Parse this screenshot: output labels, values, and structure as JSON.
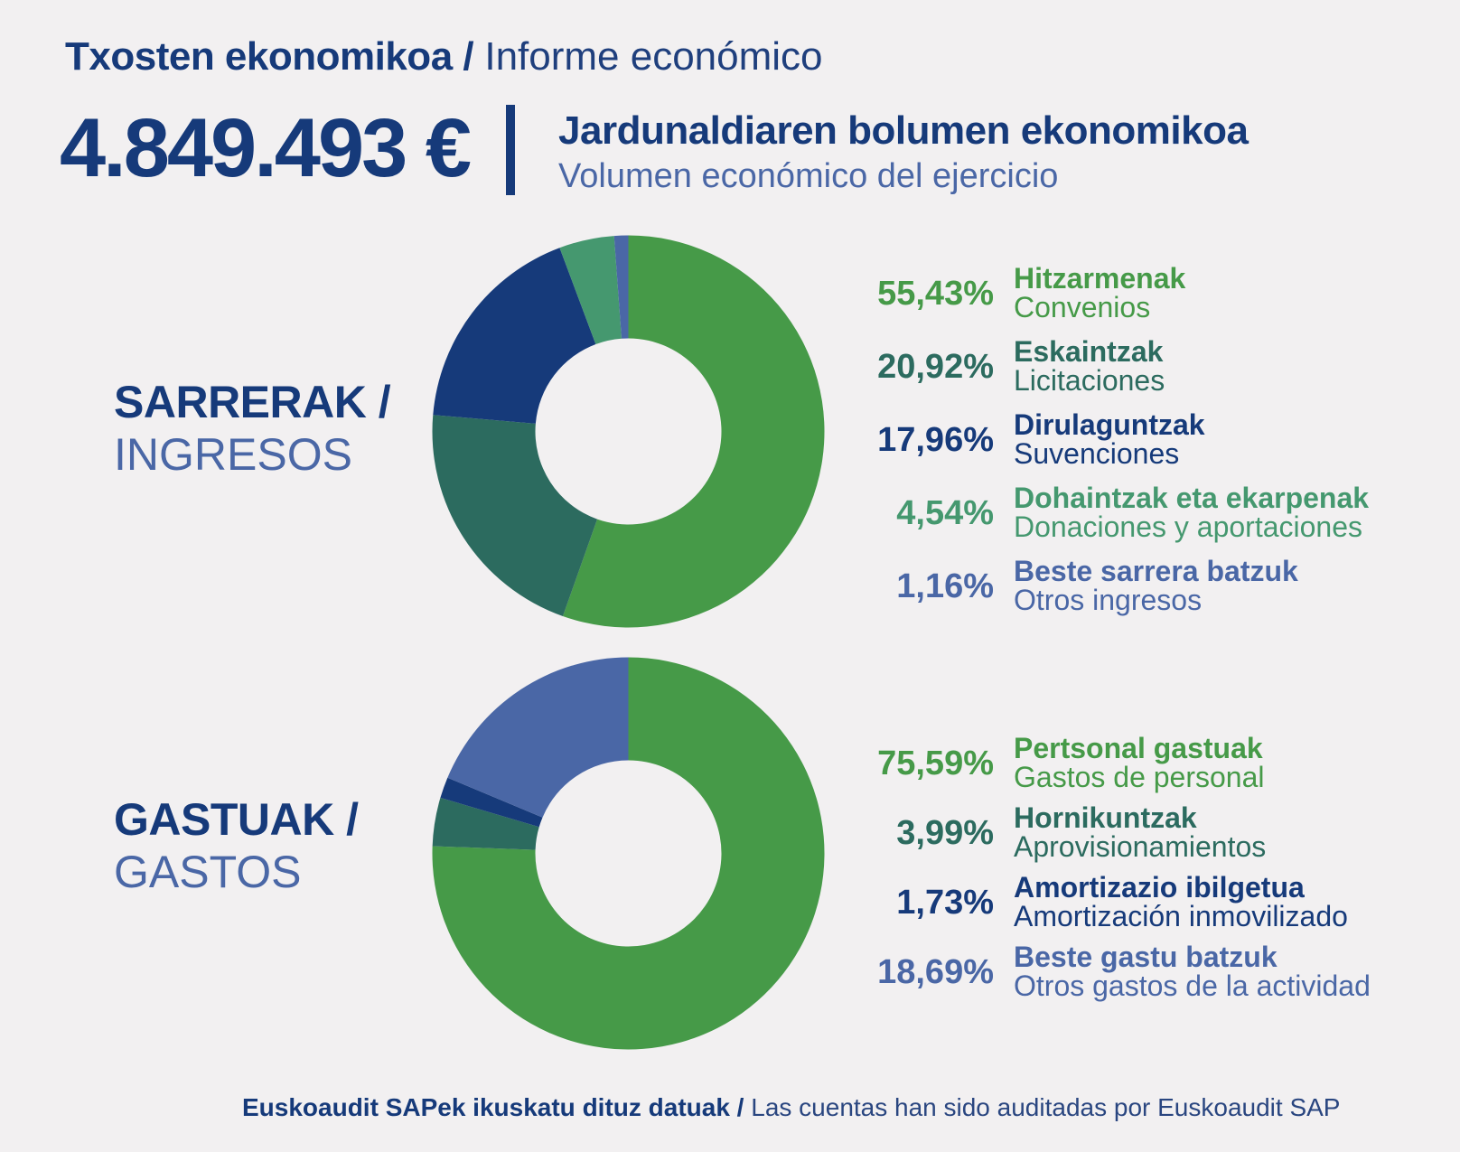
{
  "header": {
    "title_eu": "Txosten ekonomikoa /",
    "title_es": "Informe económico",
    "total": "4.849.493 €",
    "volume_eu": "Jardunaldiaren bolumen ekonomikoa",
    "volume_es": "Volumen económico del ejercicio"
  },
  "income": {
    "title_eu": "SARRERAK /",
    "title_es": "INGRESOS",
    "items": [
      {
        "pct": "55,43%",
        "eu": "Hitzarmenak",
        "es": "Convenios"
      },
      {
        "pct": "20,92%",
        "eu": "Eskaintzak",
        "es": "Licitaciones"
      },
      {
        "pct": "17,96%",
        "eu": "Dirulaguntzak",
        "es": "Suvenciones"
      },
      {
        "pct": "4,54%",
        "eu": "Dohaintzak eta ekarpenak",
        "es": "Donaciones y aportaciones"
      },
      {
        "pct": "1,16%",
        "eu": "Beste sarrera batzuk",
        "es": "Otros ingresos"
      }
    ]
  },
  "expenses": {
    "title_eu": "GASTUAK /",
    "title_es": "GASTOS",
    "items": [
      {
        "pct": "75,59%",
        "eu": "Pertsonal gastuak",
        "es": "Gastos de personal"
      },
      {
        "pct": "3,99%",
        "eu": "Hornikuntzak",
        "es": "Aprovisionamientos"
      },
      {
        "pct": "1,73%",
        "eu": "Amortizazio ibilgetua",
        "es": "Amortización inmovilizado"
      },
      {
        "pct": "18,69%",
        "eu": "Beste gastu batzuk",
        "es": "Otros gastos de la actividad"
      }
    ]
  },
  "footer": {
    "bold": "Euskoaudit SAPek ikuskatu dituz datuak /",
    "normal": "Las cuentas han sido auditadas por Euskoaudit SAP"
  },
  "colors": {
    "green": "#469a48",
    "dark_teal": "#2c6b5f",
    "navy": "#163a7a",
    "mint": "#45986f",
    "steel_blue": "#4a67a6",
    "background": "#f2f0f1"
  },
  "chart_data": [
    {
      "type": "pie",
      "categories": [
        "Hitzarmenak",
        "Eskaintzak",
        "Dirulaguntzak",
        "Dohaintzak eta ekarpenak",
        "Beste sarrera batzuk"
      ],
      "values": [
        55.43,
        20.92,
        17.96,
        4.54,
        1.16
      ],
      "colors": [
        "#469a48",
        "#2c6b5f",
        "#163a7a",
        "#45986f",
        "#4a67a6"
      ],
      "title": "SARRERAK / INGRESOS"
    },
    {
      "type": "pie",
      "categories": [
        "Pertsonal gastuak",
        "Hornikuntzak",
        "Amortizazio ibilgetua",
        "Beste gastu batzuk"
      ],
      "values": [
        75.59,
        3.99,
        1.73,
        18.69
      ],
      "colors": [
        "#469a48",
        "#2c6b5f",
        "#163a7a",
        "#4a67a6"
      ],
      "title": "GASTUAK / GASTOS"
    }
  ]
}
